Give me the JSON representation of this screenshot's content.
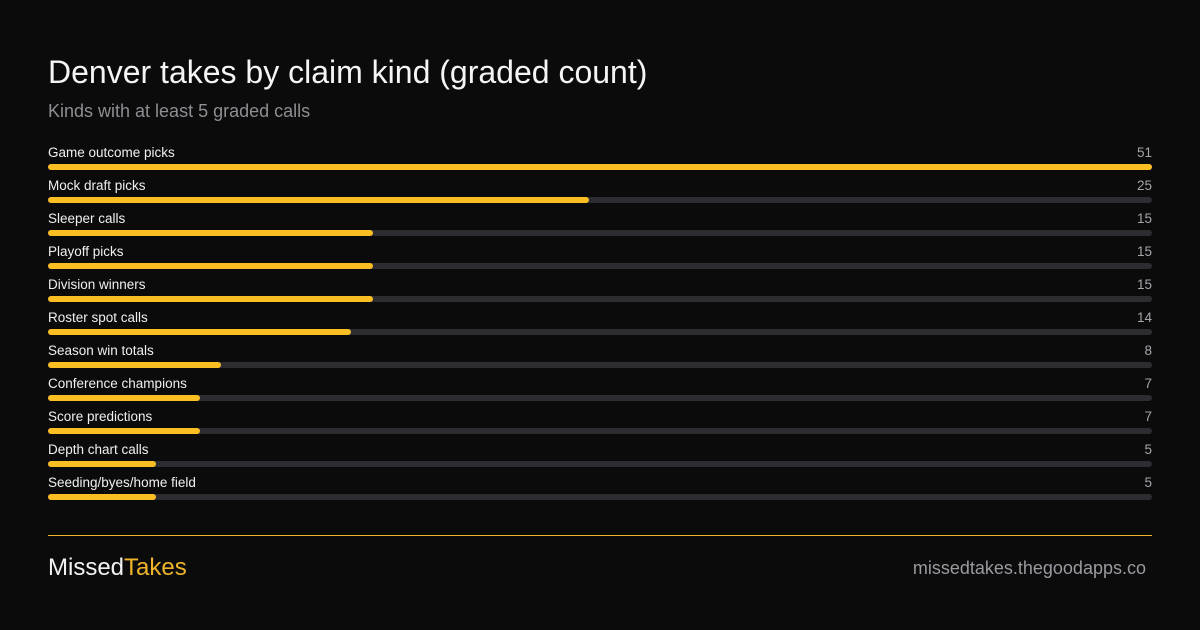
{
  "colors": {
    "background": "#0b0b0c",
    "bar_fill": "#fbbf24",
    "bar_track": "#2c2c31",
    "accent": "#f0b429"
  },
  "chart_data": {
    "type": "bar",
    "orientation": "horizontal",
    "title": "Denver takes by claim kind (graded count)",
    "subtitle": "Kinds with at least 5 graded calls",
    "categories": [
      "Game outcome picks",
      "Mock draft picks",
      "Sleeper calls",
      "Playoff picks",
      "Division winners",
      "Roster spot calls",
      "Season win totals",
      "Conference champions",
      "Score predictions",
      "Depth chart calls",
      "Seeding/byes/home field"
    ],
    "values": [
      51,
      25,
      15,
      15,
      15,
      14,
      8,
      7,
      7,
      5,
      5
    ],
    "xlim": [
      0,
      51
    ],
    "grid": false,
    "legend": "none"
  },
  "footer": {
    "brand_part1": "Missed",
    "brand_part2": "Takes",
    "url": "missedtakes.thegoodapps.co"
  }
}
